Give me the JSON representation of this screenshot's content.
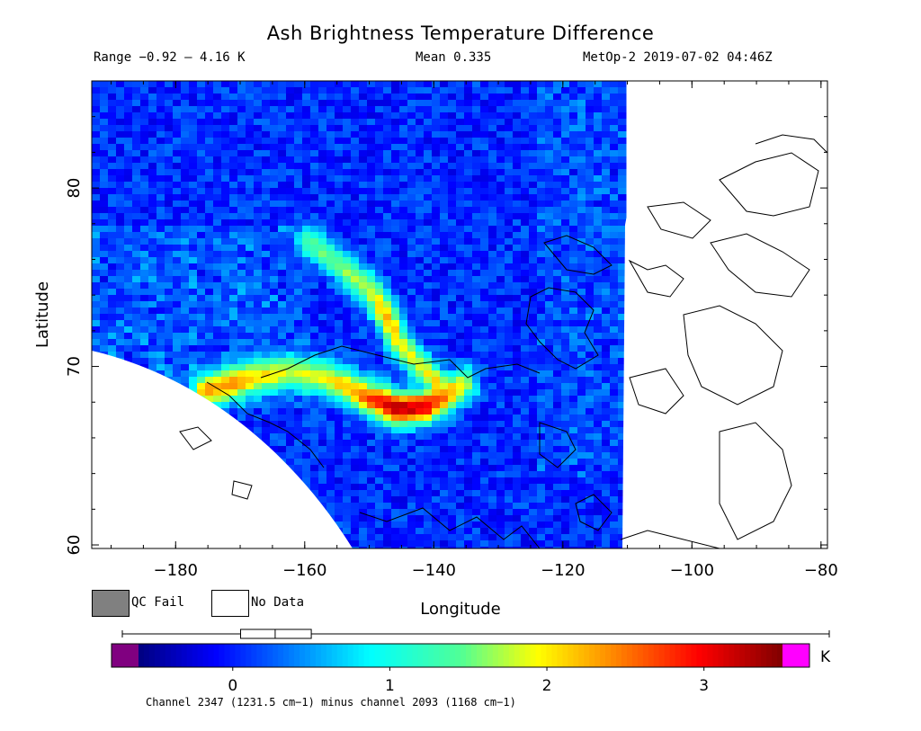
{
  "chart_data": {
    "type": "heatmap",
    "title": "Ash Brightness Temperature Difference",
    "range_text": "Range −0.92 – 4.16 K",
    "mean_text": "Mean 0.335",
    "satellite_text": "MetOp-2 2019-07-02 04:46Z",
    "xlabel": "Longitude",
    "ylabel": "Latitude",
    "xlim": [
      -193,
      -79
    ],
    "ylim": [
      59.8,
      86
    ],
    "x_ticks": [
      -180,
      -160,
      -140,
      -120,
      -100,
      -80
    ],
    "x_tick_labels": [
      "−180",
      "−160",
      "−140",
      "−120",
      "−100",
      "−80"
    ],
    "y_ticks": [
      60,
      70,
      80
    ],
    "y_tick_labels": [
      "60",
      "70",
      "80"
    ],
    "legend": [
      {
        "label": "QC Fail",
        "color": "#808080"
      },
      {
        "label": "No Data",
        "color": "#ffffff"
      }
    ],
    "colorbar": {
      "min": -0.92,
      "max": 4.16,
      "ticks": [
        0,
        1,
        2,
        3
      ],
      "tick_labels": [
        "0",
        "1",
        "2",
        "3"
      ],
      "unit": "K",
      "under_color": "#800080",
      "over_color": "#ff00ff"
    },
    "boxplot": {
      "whisker_low": -0.92,
      "q1": 0.05,
      "median": 0.27,
      "q3": 0.5,
      "whisker_high": 4.16
    },
    "footer": "Channel 2347 (1231.5 cm−1) minus channel 2093 (1168 cm−1)",
    "grid": false,
    "plume_path": [
      {
        "lon": -176,
        "lat": 68.8,
        "value": 2.3
      },
      {
        "lon": -172,
        "lat": 69.2,
        "value": 2.4
      },
      {
        "lon": -168,
        "lat": 69.6,
        "value": 2.1
      },
      {
        "lon": -163,
        "lat": 69.9,
        "value": 1.8
      },
      {
        "lon": -158,
        "lat": 69.6,
        "value": 1.9
      },
      {
        "lon": -154,
        "lat": 69.0,
        "value": 2.2
      },
      {
        "lon": -150,
        "lat": 68.3,
        "value": 2.8
      },
      {
        "lon": -146,
        "lat": 67.8,
        "value": 3.3
      },
      {
        "lon": -142,
        "lat": 67.9,
        "value": 3.1
      },
      {
        "lon": -139,
        "lat": 68.5,
        "value": 2.5
      },
      {
        "lon": -136,
        "lat": 69.2,
        "value": 1.8
      }
    ],
    "plume_branch": [
      {
        "lon": -160,
        "lat": 77.2,
        "value": 1.4
      },
      {
        "lon": -155,
        "lat": 75.8,
        "value": 1.6
      },
      {
        "lon": -150,
        "lat": 74.3,
        "value": 1.9
      },
      {
        "lon": -148,
        "lat": 73.0,
        "value": 2.3
      },
      {
        "lon": -146,
        "lat": 71.5,
        "value": 2.0
      },
      {
        "lon": -143,
        "lat": 70.3,
        "value": 1.9
      },
      {
        "lon": -140,
        "lat": 69.2,
        "value": 2.1
      }
    ]
  }
}
